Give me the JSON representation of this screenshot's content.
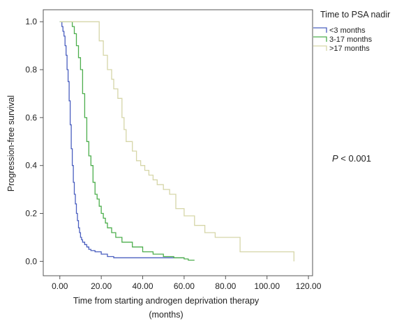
{
  "chart_data": {
    "type": "line",
    "step": true,
    "xlabel_line1": "Time from starting androgen deprivation therapy",
    "xlabel_line2": "(months)",
    "ylabel": "Progression-free survival",
    "xlim": [
      -8,
      122
    ],
    "ylim": [
      -0.06,
      1.05
    ],
    "x_ticks": [
      0,
      20,
      40,
      60,
      80,
      100,
      120
    ],
    "x_tick_labels": [
      "0.00",
      "20.00",
      "40.00",
      "60.00",
      "80.00",
      "100.00",
      "120.00"
    ],
    "y_ticks": [
      0,
      0.2,
      0.4,
      0.6,
      0.8,
      1.0
    ],
    "y_tick_labels": [
      "0.0",
      "0.2",
      "0.4",
      "0.6",
      "0.8",
      "1.0"
    ],
    "legend_title": "Time to PSA nadir",
    "legend_position": "top-right",
    "annotation_italic": "P",
    "annotation_rest": " < 0.001",
    "series": [
      {
        "name": "<3 months",
        "color": "#4a5fbf",
        "x": [
          0,
          1,
          1.5,
          2,
          2.5,
          3,
          3.5,
          4,
          4.5,
          5,
          5.5,
          6,
          6.5,
          7,
          7.5,
          8,
          8.5,
          9,
          9.5,
          10,
          10.5,
          11,
          12,
          13,
          14,
          15,
          17,
          20,
          23,
          26,
          60
        ],
        "y": [
          1.0,
          0.98,
          0.96,
          0.94,
          0.9,
          0.86,
          0.8,
          0.75,
          0.67,
          0.57,
          0.47,
          0.4,
          0.33,
          0.28,
          0.24,
          0.2,
          0.17,
          0.14,
          0.12,
          0.1,
          0.09,
          0.08,
          0.07,
          0.06,
          0.05,
          0.045,
          0.04,
          0.03,
          0.02,
          0.015,
          0.015
        ]
      },
      {
        "name": "3-17 months",
        "color": "#4cae4c",
        "x": [
          0,
          3,
          5,
          6,
          7,
          8,
          9,
          10,
          11,
          12,
          13,
          14,
          15,
          16,
          17,
          18,
          19,
          20,
          21,
          22,
          23,
          25,
          27,
          30,
          35,
          40,
          45,
          50,
          55,
          60,
          62,
          65
        ],
        "y": [
          1.0,
          1.0,
          1.0,
          0.98,
          0.95,
          0.9,
          0.85,
          0.8,
          0.7,
          0.6,
          0.5,
          0.44,
          0.4,
          0.33,
          0.28,
          0.26,
          0.23,
          0.2,
          0.18,
          0.16,
          0.14,
          0.12,
          0.1,
          0.08,
          0.06,
          0.04,
          0.03,
          0.02,
          0.015,
          0.01,
          0.005,
          0.005
        ]
      },
      {
        "name": ">17 months",
        "color": "#d6d6a8",
        "x": [
          0,
          10,
          17,
          19,
          21,
          23,
          25,
          26,
          28,
          30,
          31,
          32,
          33,
          35,
          37,
          39,
          41,
          43,
          45,
          47,
          50,
          53,
          56,
          60,
          65,
          70,
          75,
          80,
          85,
          87,
          90,
          95,
          100,
          110,
          113
        ],
        "y": [
          1.0,
          1.0,
          1.0,
          0.92,
          0.86,
          0.8,
          0.76,
          0.72,
          0.68,
          0.6,
          0.55,
          0.5,
          0.5,
          0.46,
          0.42,
          0.4,
          0.38,
          0.36,
          0.34,
          0.32,
          0.3,
          0.28,
          0.22,
          0.19,
          0.15,
          0.12,
          0.1,
          0.1,
          0.1,
          0.04,
          0.04,
          0.04,
          0.04,
          0.04,
          0.0
        ]
      }
    ]
  }
}
